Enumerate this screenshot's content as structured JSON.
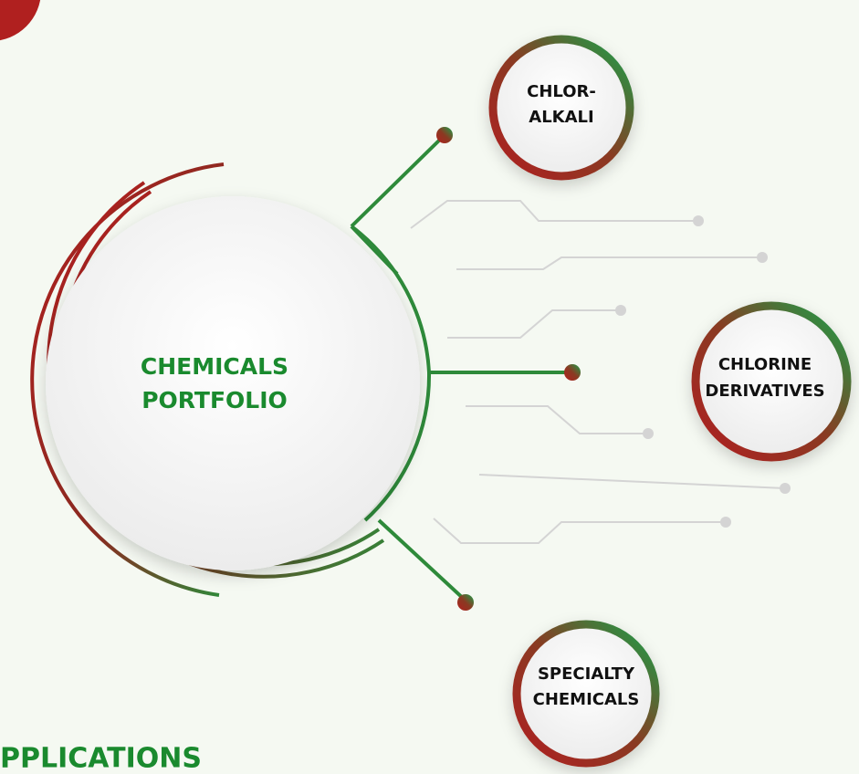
{
  "center": {
    "lines": [
      "CHEMICALS",
      "PORTFOLIO"
    ]
  },
  "nodes": [
    {
      "lines": [
        "CHLOR-",
        "ALKALI"
      ]
    },
    {
      "lines": [
        "CHLORINE",
        "DERIVATIVES"
      ]
    },
    {
      "lines": [
        "SPECIALTY",
        "CHEMICALS"
      ]
    }
  ],
  "footer": {
    "title": "PPLICATIONS"
  }
}
